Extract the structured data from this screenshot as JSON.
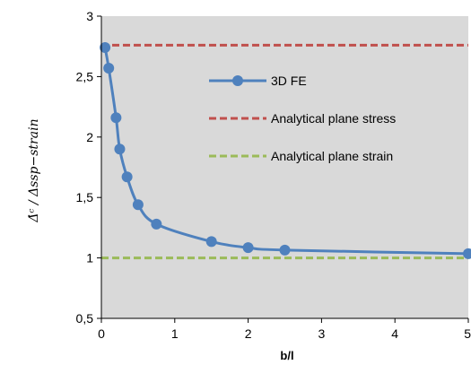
{
  "chart_data": {
    "type": "line",
    "xlabel": "b/l",
    "ylabel": "Δ̇ᶜ / Δssp−strain",
    "xlim": [
      0,
      5
    ],
    "ylim": [
      0.5,
      3
    ],
    "xticks": [
      0,
      1,
      2,
      3,
      4,
      5
    ],
    "xtick_labels": [
      "0",
      "1",
      "2",
      "3",
      "4",
      "5"
    ],
    "yticks": [
      0.5,
      1,
      1.5,
      2,
      2.5,
      3
    ],
    "ytick_labels": [
      "0,5",
      "1",
      "1,5",
      "2",
      "2,5",
      "3"
    ],
    "grid": false,
    "plot_background": "#d9d9d9",
    "legend_position": "upper-middle",
    "series": [
      {
        "name": "3D FE",
        "color": "#4f81bd",
        "style": "solid-markers",
        "x": [
          0.05,
          0.1,
          0.2,
          0.25,
          0.35,
          0.5,
          0.75,
          1.5,
          2.0,
          2.5,
          5.0
        ],
        "y": [
          2.74,
          2.57,
          2.16,
          1.9,
          1.67,
          1.44,
          1.28,
          1.135,
          1.085,
          1.065,
          1.035
        ]
      },
      {
        "name": "Analytical plane stress",
        "color": "#c0504d",
        "style": "dashed",
        "x": [
          0,
          5
        ],
        "y": [
          2.76,
          2.76
        ]
      },
      {
        "name": "Analytical plane strain",
        "color": "#9bbb59",
        "style": "dashed",
        "x": [
          0,
          5
        ],
        "y": [
          1.0,
          1.0
        ]
      }
    ]
  }
}
